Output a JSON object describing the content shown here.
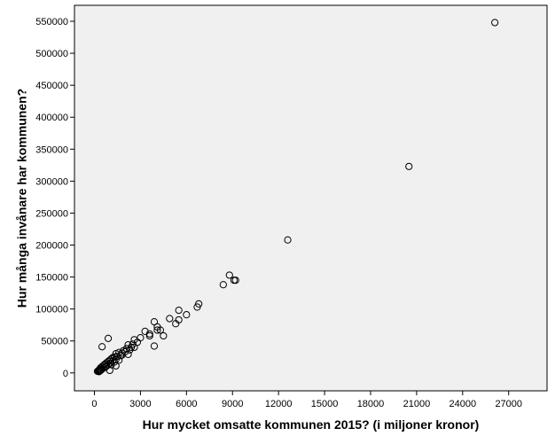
{
  "chart_data": {
    "type": "scatter",
    "title": "",
    "xlabel": "Hur mycket omsatte kommunen 2015? (i miljoner kronor)",
    "ylabel": "Hur många invånare har kommunen?",
    "xlim": [
      -1300,
      29500
    ],
    "ylim": [
      -28000,
      575000
    ],
    "x_ticks": [
      0,
      3000,
      6000,
      9000,
      12000,
      15000,
      18000,
      21000,
      24000,
      27000
    ],
    "y_ticks": [
      0,
      50000,
      100000,
      150000,
      200000,
      250000,
      300000,
      350000,
      400000,
      450000,
      500000,
      550000
    ],
    "grid": false,
    "legend": "none",
    "plot_background": "#f0f0f0",
    "marker_color": "#000000",
    "marker_style": "open-circle",
    "points": [
      [
        26100,
        548000
      ],
      [
        20500,
        323000
      ],
      [
        12600,
        208000
      ],
      [
        8800,
        153000
      ],
      [
        9100,
        145000
      ],
      [
        9200,
        145000
      ],
      [
        8400,
        138000
      ],
      [
        6800,
        108000
      ],
      [
        6700,
        103000
      ],
      [
        5500,
        98000
      ],
      [
        6000,
        91000
      ],
      [
        4900,
        85000
      ],
      [
        5500,
        83000
      ],
      [
        3900,
        80000
      ],
      [
        5300,
        77000
      ],
      [
        4100,
        72000
      ],
      [
        4300,
        67000
      ],
      [
        4100,
        67000
      ],
      [
        3300,
        65000
      ],
      [
        3600,
        58000
      ],
      [
        4500,
        58000
      ],
      [
        3600,
        61000
      ],
      [
        3000,
        55000
      ],
      [
        2600,
        52000
      ],
      [
        2800,
        48000
      ],
      [
        2500,
        45000
      ],
      [
        2200,
        44000
      ],
      [
        3900,
        42000
      ],
      [
        2400,
        40000
      ],
      [
        2100,
        38000
      ],
      [
        2300,
        36000
      ],
      [
        1900,
        35000
      ],
      [
        2000,
        33000
      ],
      [
        1600,
        32000
      ],
      [
        1800,
        31000
      ],
      [
        1400,
        30000
      ],
      [
        2200,
        29000
      ],
      [
        1700,
        27000
      ],
      [
        1500,
        26000
      ],
      [
        1300,
        25000
      ],
      [
        1200,
        24000
      ],
      [
        1100,
        22000
      ],
      [
        1400,
        21000
      ],
      [
        1000,
        20000
      ],
      [
        1200,
        19000
      ],
      [
        900,
        18000
      ],
      [
        1300,
        17000
      ],
      [
        800,
        16000
      ],
      [
        1000,
        15000
      ],
      [
        700,
        14000
      ],
      [
        900,
        13000
      ],
      [
        600,
        12000
      ],
      [
        800,
        11000
      ],
      [
        500,
        10000
      ],
      [
        700,
        9000
      ],
      [
        400,
        8000
      ],
      [
        600,
        7500
      ],
      [
        500,
        6500
      ],
      [
        350,
        6000
      ],
      [
        450,
        5000
      ],
      [
        300,
        4500
      ],
      [
        400,
        4000
      ],
      [
        250,
        3500
      ],
      [
        350,
        3000
      ],
      [
        200,
        2500
      ],
      [
        300,
        2000
      ],
      [
        1000,
        4000
      ],
      [
        1400,
        11000
      ],
      [
        900,
        54000
      ],
      [
        500,
        41000
      ],
      [
        1600,
        20000
      ],
      [
        1800,
        28000
      ],
      [
        2600,
        40000
      ],
      [
        1100,
        13000
      ],
      [
        750,
        10000
      ]
    ]
  }
}
